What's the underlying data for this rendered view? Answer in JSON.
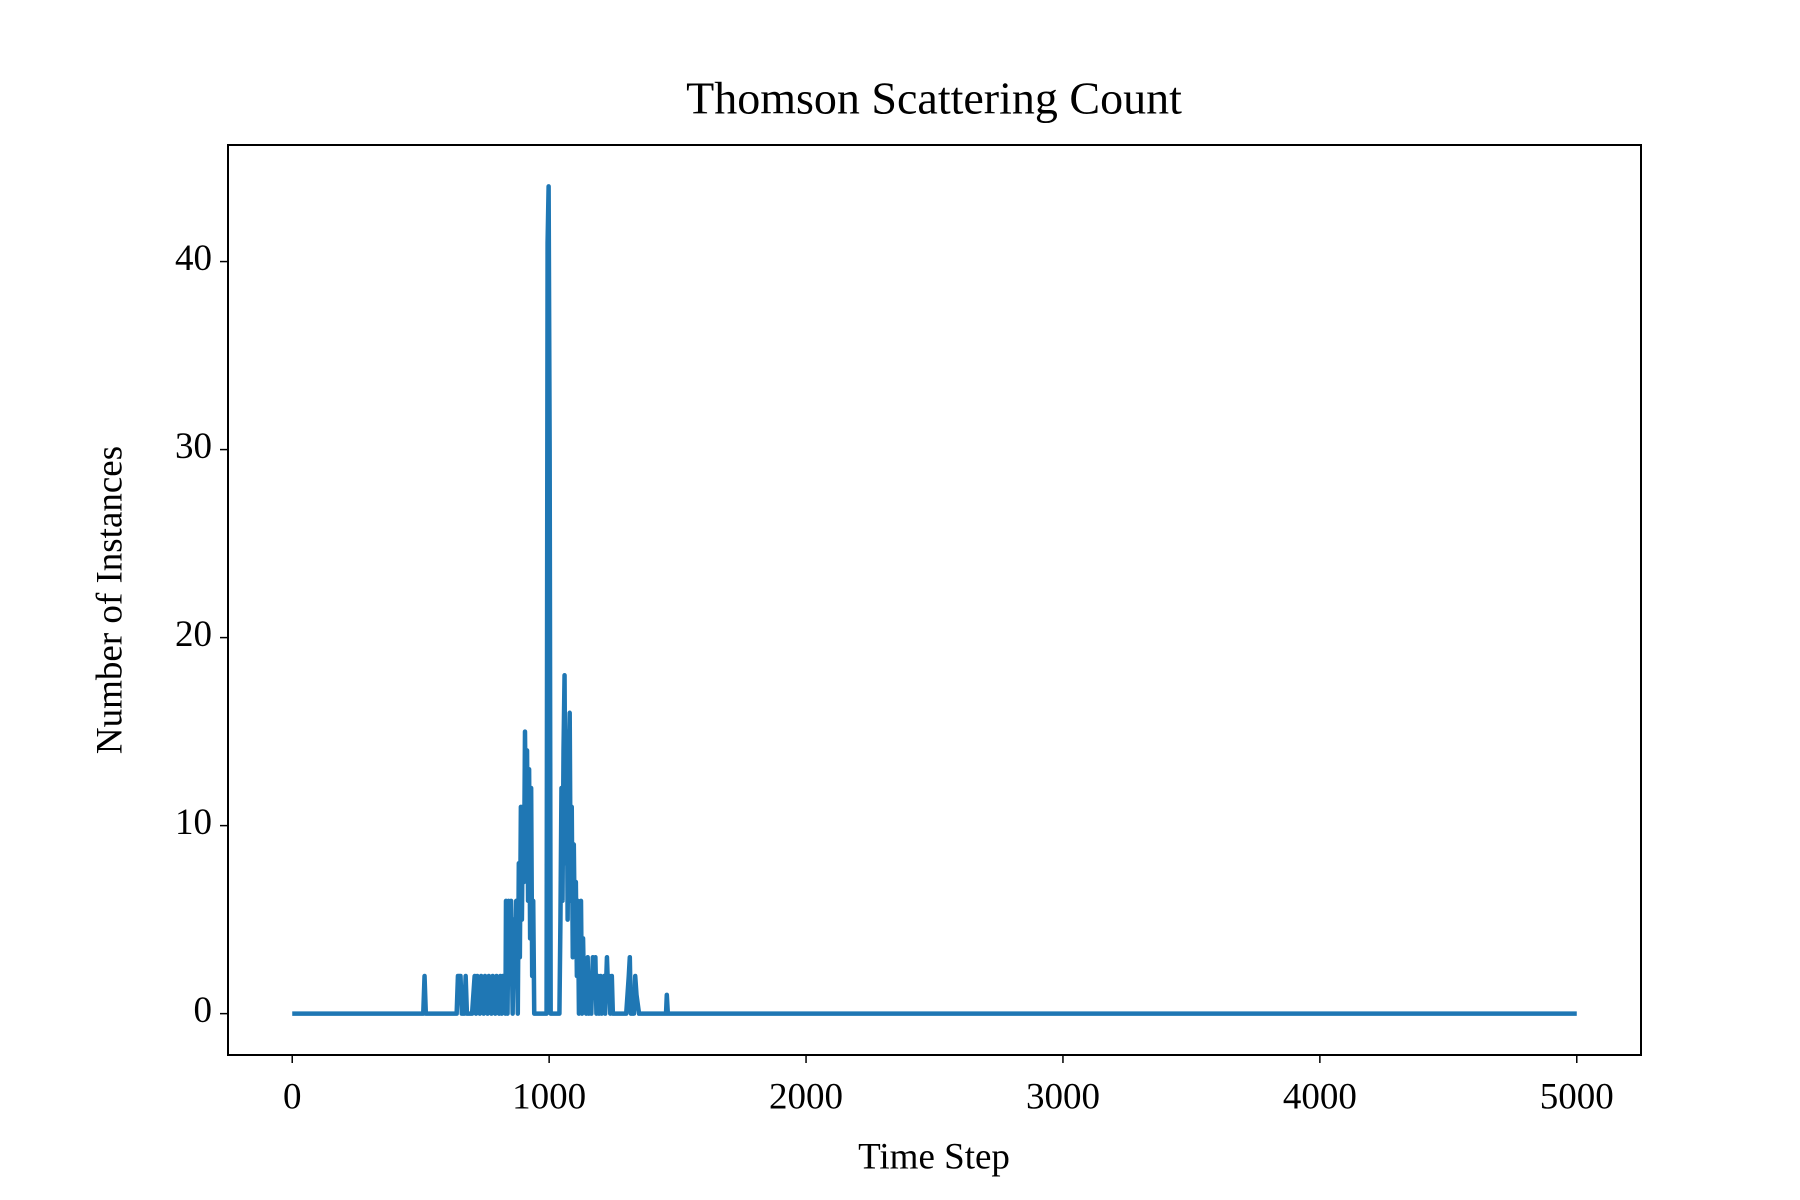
{
  "chart_data": {
    "type": "line",
    "title": "Thomson Scattering Count",
    "x_label": "Time Step",
    "y_label": "Number of Instances",
    "color": "#1f77b4",
    "x": [
      0,
      510,
      515,
      520,
      640,
      645,
      655,
      660,
      670,
      675,
      680,
      700,
      710,
      715,
      720,
      730,
      735,
      745,
      750,
      760,
      765,
      775,
      780,
      790,
      795,
      805,
      810,
      815,
      820,
      830,
      832,
      838,
      842,
      848,
      852,
      858,
      862,
      868,
      872,
      878,
      882,
      886,
      890,
      894,
      898,
      902,
      906,
      910,
      914,
      918,
      922,
      926,
      930,
      934,
      938,
      942,
      990,
      994,
      998,
      1002,
      1006,
      1040,
      1044,
      1048,
      1052,
      1056,
      1060,
      1064,
      1068,
      1072,
      1076,
      1080,
      1084,
      1088,
      1092,
      1096,
      1100,
      1104,
      1108,
      1112,
      1116,
      1120,
      1124,
      1128,
      1132,
      1136,
      1140,
      1144,
      1150,
      1154,
      1160,
      1164,
      1170,
      1174,
      1180,
      1184,
      1190,
      1194,
      1200,
      1204,
      1210,
      1214,
      1218,
      1225,
      1230,
      1234,
      1238,
      1244,
      1248,
      1300,
      1310,
      1314,
      1318,
      1330,
      1335,
      1340,
      1350,
      1455,
      1458,
      1462,
      5000
    ],
    "values": [
      0,
      0,
      2,
      0,
      0,
      2,
      2,
      0,
      0,
      2,
      0,
      0,
      2,
      0,
      2,
      0,
      2,
      0,
      2,
      0,
      2,
      0,
      2,
      0,
      2,
      0,
      2,
      0,
      2,
      0,
      6,
      0,
      6,
      2,
      6,
      0,
      5,
      2,
      6,
      0,
      8,
      3,
      11,
      5,
      11,
      7,
      15,
      9,
      14,
      6,
      13,
      4,
      12,
      2,
      6,
      0,
      0,
      41,
      44,
      30,
      0,
      0,
      5,
      12,
      6,
      14,
      18,
      8,
      15,
      5,
      13,
      16,
      6,
      11,
      3,
      9,
      4,
      7,
      2,
      6,
      0,
      3,
      6,
      0,
      4,
      1,
      2,
      0,
      3,
      0,
      2,
      0,
      3,
      1,
      3,
      0,
      2,
      0,
      2,
      0,
      1,
      2,
      0,
      3,
      1,
      2,
      0,
      2,
      0,
      0,
      2,
      3,
      0,
      0,
      2,
      1,
      0,
      0,
      1,
      0,
      0
    ],
    "xlim": [
      -250,
      5250
    ],
    "ylim": [
      -2.2,
      46.2
    ],
    "xticks": [
      0,
      1000,
      2000,
      3000,
      4000,
      5000
    ],
    "yticks": [
      0,
      10,
      20,
      30,
      40
    ],
    "grid": false
  }
}
